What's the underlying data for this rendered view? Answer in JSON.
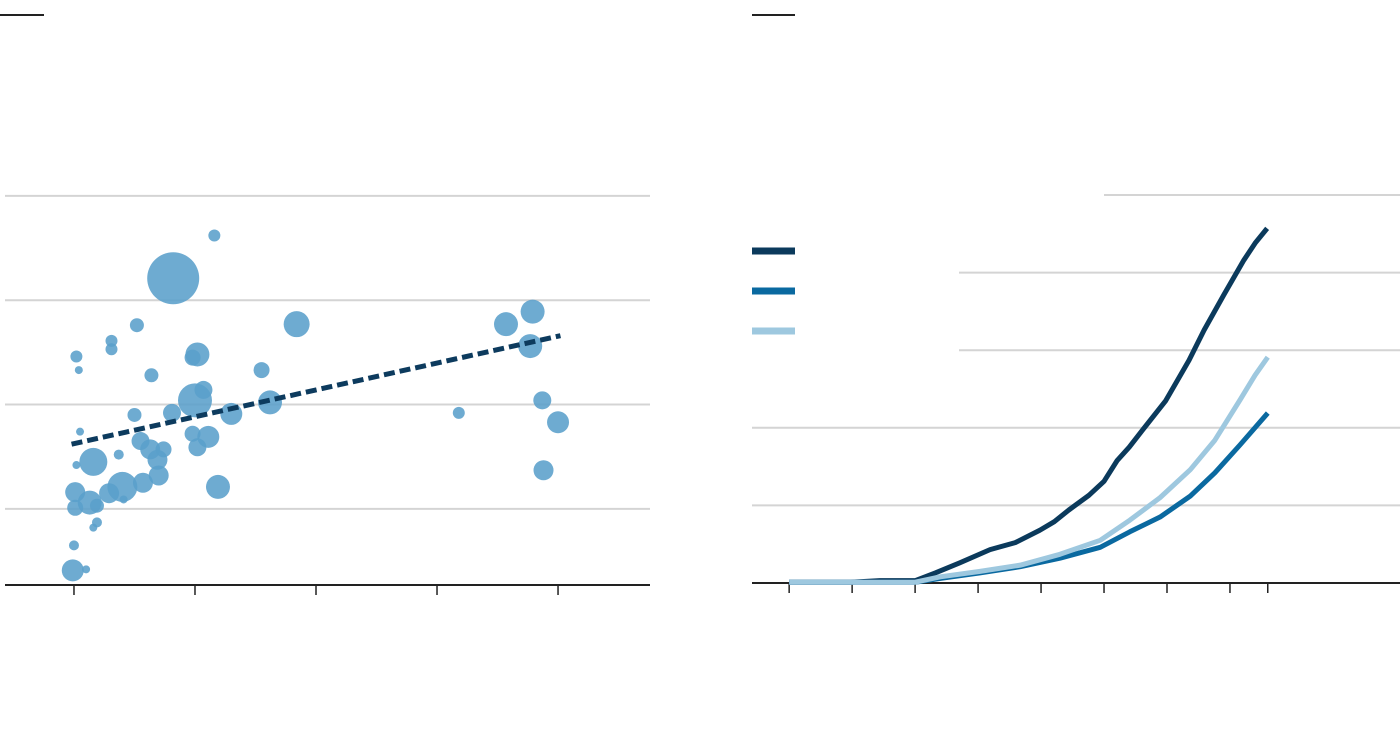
{
  "chart_data": [
    {
      "type": "scatter",
      "color": "#5a9fcb",
      "grid": true,
      "xlim": [
        -0.57,
        4.76
      ],
      "ylim": [
        0.27,
        4.2
      ],
      "xticks": [
        0,
        1,
        2,
        3,
        4
      ],
      "yticks": [
        1,
        2,
        3,
        4
      ],
      "x": [
        0.82,
        1.16,
        1.84,
        0.52,
        0.31,
        0.31,
        0.02,
        1.02,
        0.98,
        0.64,
        1.55,
        1.0,
        1.07,
        1.62,
        1.3,
        0.81,
        0.5,
        3.18,
        3.57,
        3.79,
        3.77,
        3.87,
        4.0,
        3.88,
        0.98,
        1.11,
        1.02,
        0.55,
        0.63,
        0.74,
        0.69,
        0.7,
        0.57,
        0.4,
        1.19,
        0.29,
        0.16,
        0.13,
        0.01,
        0.01,
        0.19,
        0.19,
        0.16,
        0.0,
        -0.01,
        0.1,
        0.37,
        0.05,
        0.04,
        0.02,
        0.41
      ],
      "values": [
        3.21,
        3.62,
        2.77,
        2.76,
        2.61,
        2.53,
        2.46,
        2.48,
        2.45,
        2.28,
        2.33,
        2.04,
        2.14,
        2.02,
        1.91,
        1.92,
        1.9,
        1.92,
        2.77,
        2.89,
        2.56,
        2.04,
        1.83,
        1.37,
        1.72,
        1.69,
        1.59,
        1.65,
        1.57,
        1.57,
        1.47,
        1.32,
        1.25,
        1.21,
        1.21,
        1.15,
        1.45,
        1.06,
        1.16,
        1.01,
        1.03,
        0.87,
        0.82,
        0.65,
        0.41,
        0.42,
        1.52,
        1.74,
        2.33,
        1.42,
        1.09
      ],
      "sizes": [
        26,
        6,
        13,
        7,
        6,
        6,
        6,
        12,
        8,
        7,
        8,
        17,
        9,
        12,
        11,
        9,
        7,
        6,
        12,
        12,
        12,
        9,
        11,
        10,
        8,
        11,
        9,
        9,
        10,
        8,
        10,
        10,
        10,
        15,
        12,
        10,
        14,
        12,
        10,
        8,
        7,
        5,
        4,
        5,
        11,
        4,
        5,
        4,
        4,
        4,
        4
      ],
      "trend": {
        "color": "#0d3b5e",
        "x": [
          -0.02,
          4.02
        ],
        "values": [
          1.62,
          2.66
        ]
      }
    },
    {
      "type": "line",
      "grid": true,
      "xlim": [
        -0.59,
        9.7
      ],
      "ylim": [
        0,
        5
      ],
      "xticks": [
        0,
        1,
        2,
        3,
        4,
        5,
        6,
        7,
        7.6
      ],
      "yticks": [
        1,
        2,
        3,
        4,
        5
      ],
      "series": [
        {
          "color": "#0b3a5c",
          "x": [
            0,
            0.97,
            1.44,
            2.0,
            2.32,
            2.71,
            3.19,
            3.59,
            3.98,
            4.21,
            4.44,
            4.76,
            5.0,
            5.21,
            5.4,
            5.63,
            5.98,
            6.35,
            6.59,
            6.9,
            7.22,
            7.4,
            7.59
          ],
          "values": [
            0.01,
            0.01,
            0.03,
            0.03,
            0.13,
            0.26,
            0.43,
            0.52,
            0.68,
            0.79,
            0.94,
            1.13,
            1.31,
            1.58,
            1.75,
            1.99,
            2.35,
            2.87,
            3.26,
            3.71,
            4.16,
            4.38,
            4.57
          ]
        },
        {
          "color": "#0a69a0",
          "x": [
            0,
            2.0,
            2.4,
            3.03,
            3.67,
            4.3,
            4.94,
            5.41,
            5.89,
            6.37,
            6.76,
            7.16,
            7.6
          ],
          "values": [
            0.01,
            0.01,
            0.06,
            0.13,
            0.21,
            0.32,
            0.46,
            0.66,
            0.85,
            1.12,
            1.42,
            1.78,
            2.19
          ]
        },
        {
          "color": "#9ec8df",
          "x": [
            0,
            2.0,
            2.4,
            3.03,
            3.67,
            4.3,
            4.94,
            5.41,
            5.89,
            6.37,
            6.76,
            7.16,
            7.4,
            7.6
          ],
          "values": [
            0.01,
            0.01,
            0.08,
            0.15,
            0.23,
            0.37,
            0.55,
            0.81,
            1.1,
            1.46,
            1.84,
            2.36,
            2.68,
            2.91
          ]
        }
      ]
    }
  ]
}
